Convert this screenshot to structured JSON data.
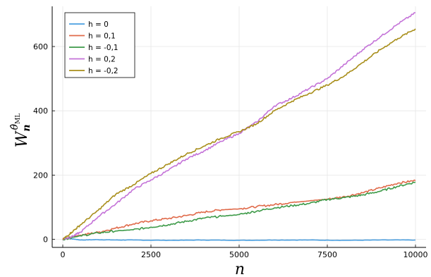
{
  "chart_data": {
    "type": "line",
    "title": "",
    "xlabel": "n",
    "ylabel": {
      "base": "W",
      "sup": "θ̂",
      "sup_sub": "ML",
      "sub": "n"
    },
    "xlim": [
      -300,
      10300
    ],
    "ylim": [
      -25,
      725
    ],
    "xticks": [
      0,
      2500,
      5000,
      7500,
      10000
    ],
    "yticks": [
      0,
      200,
      400,
      600
    ],
    "grid": true,
    "legend_position": "top-left",
    "series": [
      {
        "name": "h = 0",
        "color": "#4a9fe0",
        "x": [
          0,
          100,
          300,
          500,
          1000,
          1500,
          2000,
          3000,
          4000,
          5000,
          6000,
          7000,
          8000,
          9000,
          10000
        ],
        "y": [
          0,
          3,
          1,
          -2,
          -1,
          -2,
          -2,
          -3,
          -2,
          -3,
          -2,
          -2,
          -3,
          -2,
          -2
        ]
      },
      {
        "name": "h = 0,1",
        "color": "#e06a4a",
        "x": [
          0,
          250,
          500,
          1000,
          1500,
          2000,
          2500,
          3000,
          3500,
          4000,
          4500,
          5000,
          5500,
          6000,
          6500,
          7000,
          7500,
          8000,
          8500,
          9000,
          9500,
          10000
        ],
        "y": [
          0,
          8,
          13,
          22,
          35,
          48,
          58,
          65,
          74,
          85,
          92,
          95,
          102,
          108,
          115,
          120,
          125,
          133,
          145,
          160,
          175,
          183
        ]
      },
      {
        "name": "h = -0,1",
        "color": "#3d9a48",
        "x": [
          0,
          250,
          500,
          1000,
          1500,
          2000,
          2500,
          3000,
          3500,
          4000,
          4500,
          5000,
          5500,
          6000,
          6500,
          7000,
          7500,
          8000,
          8500,
          9000,
          9500,
          10000
        ],
        "y": [
          0,
          6,
          11,
          20,
          26,
          30,
          38,
          46,
          56,
          66,
          72,
          77,
          88,
          98,
          105,
          112,
          124,
          130,
          138,
          150,
          165,
          178
        ]
      },
      {
        "name": "h = 0,2",
        "color": "#c473d8",
        "x": [
          0,
          250,
          500,
          1000,
          1500,
          2000,
          2500,
          3000,
          3500,
          4000,
          4500,
          5000,
          5500,
          6000,
          6500,
          7000,
          7500,
          8000,
          8500,
          9000,
          9500,
          10000
        ],
        "y": [
          0,
          8,
          22,
          70,
          110,
          155,
          185,
          215,
          250,
          275,
          305,
          330,
          365,
          415,
          440,
          470,
          500,
          545,
          590,
          630,
          670,
          705
        ]
      },
      {
        "name": "h = -0,2",
        "color": "#a88e1a",
        "x": [
          0,
          250,
          500,
          1000,
          1500,
          2000,
          2500,
          3000,
          3500,
          4000,
          4500,
          5000,
          5500,
          6000,
          6500,
          7000,
          7500,
          8000,
          8500,
          9000,
          9500,
          10000
        ],
        "y": [
          0,
          22,
          45,
          90,
          140,
          170,
          205,
          235,
          265,
          290,
          315,
          335,
          360,
          400,
          430,
          455,
          480,
          510,
          550,
          590,
          625,
          655
        ]
      }
    ]
  }
}
